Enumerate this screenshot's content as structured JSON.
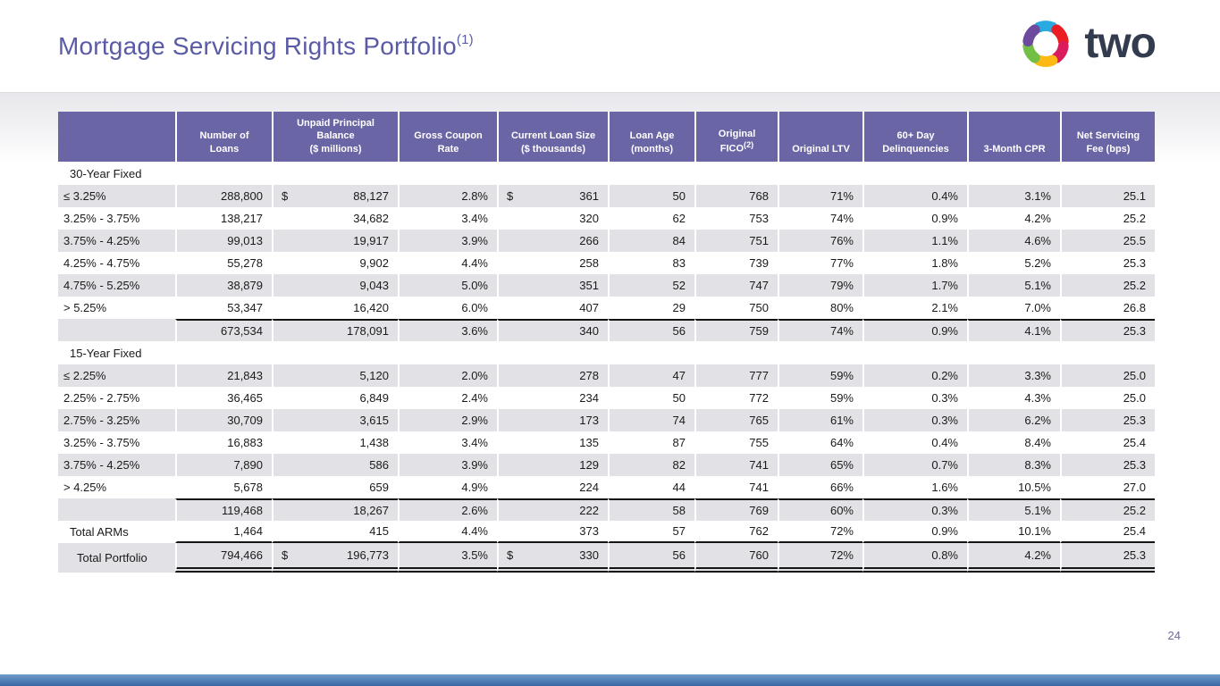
{
  "slide": {
    "title": "Mortgage Servicing Rights Portfolio",
    "title_superscript": "(1)",
    "logo_text": "two",
    "page_number": "24"
  },
  "colors": {
    "title_purple": "#5a5ba6",
    "header_purple": "#6a65a4",
    "row_gray": "#e2e1e5",
    "logo_wordmark": "#333c4e",
    "footer_blue": "#3a67a2",
    "logo_segments": [
      "#29abe2",
      "#ec1c24",
      "#da1c5c",
      "#fdb813",
      "#72bf44",
      "#6e4a9e"
    ]
  },
  "table": {
    "columns": [
      {
        "label": ""
      },
      {
        "label": "Number of\nLoans"
      },
      {
        "label": "Unpaid Principal\nBalance\n($ millions)"
      },
      {
        "label": "Gross Coupon\nRate"
      },
      {
        "label": "Current Loan Size\n($ thousands)"
      },
      {
        "label": "Loan Age\n(months)"
      },
      {
        "label": "Original\nFICO",
        "sup": "(2)"
      },
      {
        "label": "Original LTV"
      },
      {
        "label": "60+ Day\nDelinquencies"
      },
      {
        "label": "3-Month CPR"
      },
      {
        "label": "Net Servicing\nFee (bps)"
      }
    ],
    "rows": [
      {
        "type": "section",
        "label": "30-Year Fixed",
        "values": [
          "",
          "",
          "",
          "",
          "",
          "",
          "",
          "",
          "",
          ""
        ]
      },
      {
        "type": "data",
        "shade": true,
        "label": "≤ 3.25%",
        "dollar_cols": [
          1,
          3
        ],
        "values": [
          "288,800",
          "88,127",
          "2.8%",
          "361",
          "50",
          "768",
          "71%",
          "0.4%",
          "3.1%",
          "25.1"
        ]
      },
      {
        "type": "data",
        "shade": false,
        "label": "3.25% - 3.75%",
        "values": [
          "138,217",
          "34,682",
          "3.4%",
          "320",
          "62",
          "753",
          "74%",
          "0.9%",
          "4.2%",
          "25.2"
        ]
      },
      {
        "type": "data",
        "shade": true,
        "label": "3.75% - 4.25%",
        "values": [
          "99,013",
          "19,917",
          "3.9%",
          "266",
          "84",
          "751",
          "76%",
          "1.1%",
          "4.6%",
          "25.5"
        ]
      },
      {
        "type": "data",
        "shade": false,
        "label": "4.25% - 4.75%",
        "values": [
          "55,278",
          "9,902",
          "4.4%",
          "258",
          "83",
          "739",
          "77%",
          "1.8%",
          "5.2%",
          "25.3"
        ]
      },
      {
        "type": "data",
        "shade": true,
        "label": "4.75% - 5.25%",
        "values": [
          "38,879",
          "9,043",
          "5.0%",
          "351",
          "52",
          "747",
          "79%",
          "1.7%",
          "5.1%",
          "25.2"
        ]
      },
      {
        "type": "data",
        "shade": false,
        "label": "> 5.25%",
        "values": [
          "53,347",
          "16,420",
          "6.0%",
          "407",
          "29",
          "750",
          "80%",
          "2.1%",
          "7.0%",
          "26.8"
        ]
      },
      {
        "type": "subtotal",
        "shade": true,
        "label": "",
        "values": [
          "673,534",
          "178,091",
          "3.6%",
          "340",
          "56",
          "759",
          "74%",
          "0.9%",
          "4.1%",
          "25.3"
        ]
      },
      {
        "type": "section",
        "label": "15-Year Fixed",
        "values": [
          "",
          "",
          "",
          "",
          "",
          "",
          "",
          "",
          "",
          ""
        ]
      },
      {
        "type": "data",
        "shade": true,
        "label": "≤ 2.25%",
        "values": [
          "21,843",
          "5,120",
          "2.0%",
          "278",
          "47",
          "777",
          "59%",
          "0.2%",
          "3.3%",
          "25.0"
        ]
      },
      {
        "type": "data",
        "shade": false,
        "label": "2.25% - 2.75%",
        "values": [
          "36,465",
          "6,849",
          "2.4%",
          "234",
          "50",
          "772",
          "59%",
          "0.3%",
          "4.3%",
          "25.0"
        ]
      },
      {
        "type": "data",
        "shade": true,
        "label": "2.75% - 3.25%",
        "values": [
          "30,709",
          "3,615",
          "2.9%",
          "173",
          "74",
          "765",
          "61%",
          "0.3%",
          "6.2%",
          "25.3"
        ]
      },
      {
        "type": "data",
        "shade": false,
        "label": "3.25% - 3.75%",
        "values": [
          "16,883",
          "1,438",
          "3.4%",
          "135",
          "87",
          "755",
          "64%",
          "0.4%",
          "8.4%",
          "25.4"
        ]
      },
      {
        "type": "data",
        "shade": true,
        "label": "3.75% - 4.25%",
        "values": [
          "7,890",
          "586",
          "3.9%",
          "129",
          "82",
          "741",
          "65%",
          "0.7%",
          "8.3%",
          "25.3"
        ]
      },
      {
        "type": "data",
        "shade": false,
        "label": "> 4.25%",
        "values": [
          "5,678",
          "659",
          "4.9%",
          "224",
          "44",
          "741",
          "66%",
          "1.6%",
          "10.5%",
          "27.0"
        ]
      },
      {
        "type": "subtotal",
        "shade": true,
        "label": "",
        "values": [
          "119,468",
          "18,267",
          "2.6%",
          "222",
          "58",
          "769",
          "60%",
          "0.3%",
          "5.1%",
          "25.2"
        ]
      },
      {
        "type": "total-arms",
        "shade": false,
        "label": "Total ARMs",
        "values": [
          "1,464",
          "415",
          "4.4%",
          "373",
          "57",
          "762",
          "72%",
          "0.9%",
          "10.1%",
          "25.4"
        ]
      },
      {
        "type": "total-portfolio",
        "shade": true,
        "label": "Total Portfolio",
        "dollar_cols": [
          1,
          3
        ],
        "values": [
          "794,466",
          "196,773",
          "3.5%",
          "330",
          "56",
          "760",
          "72%",
          "0.8%",
          "4.2%",
          "25.3"
        ]
      }
    ]
  }
}
